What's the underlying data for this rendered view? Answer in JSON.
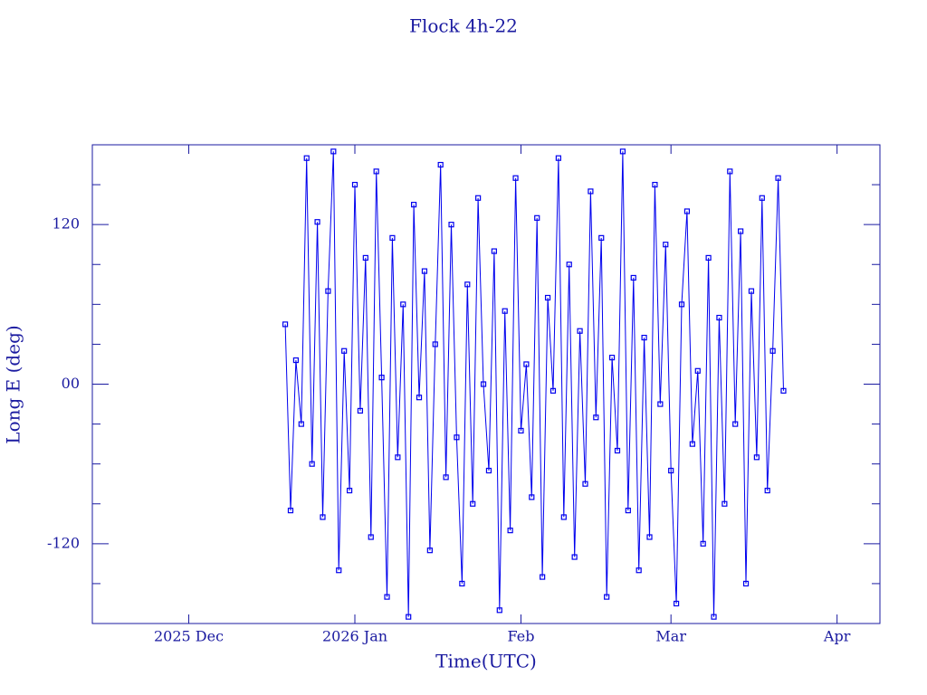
{
  "chart_data": {
    "type": "line",
    "title": "Flock 4h-22",
    "x_label": "Time(UTC)",
    "y_label": "Long E (deg)",
    "color": "#0000ee",
    "xlim": [
      -18,
      129
    ],
    "xticks": [
      {
        "value": 0,
        "label": "2025 Dec"
      },
      {
        "value": 31,
        "label": "2026 Jan"
      },
      {
        "value": 62,
        "label": "Feb"
      },
      {
        "value": 90,
        "label": "Mar"
      },
      {
        "value": 121,
        "label": "Apr"
      }
    ],
    "ylim": [
      -180,
      180
    ],
    "yticks": [
      {
        "value": -120,
        "label": "-120"
      },
      {
        "value": 0,
        "label": "00"
      },
      120
    ],
    "y_minor_ticks": [
      -150,
      -90,
      -60,
      -30,
      30,
      60,
      90,
      150
    ],
    "series": [
      {
        "x": [
          18,
          19,
          20,
          21,
          22,
          23,
          24,
          25,
          26,
          27,
          28,
          29,
          30,
          31,
          32,
          33,
          34,
          35,
          36,
          37,
          38,
          39,
          40,
          41,
          42,
          43,
          44,
          45,
          46,
          47,
          48,
          49,
          50,
          51,
          52,
          53,
          54,
          55,
          56,
          57,
          58,
          59,
          60,
          61,
          62,
          63,
          64,
          65,
          66,
          67,
          68,
          69,
          70,
          71,
          72,
          73,
          74,
          75,
          76,
          77,
          78,
          79,
          80,
          81,
          82,
          83,
          84,
          85,
          86,
          87,
          88,
          89,
          90,
          91,
          92,
          93,
          94,
          95,
          96,
          97,
          98,
          99,
          100,
          101,
          102,
          103,
          104,
          105,
          106,
          107,
          108,
          109,
          110,
          111
        ],
        "values": [
          45,
          -95,
          18,
          -30,
          170,
          -60,
          122,
          -100,
          70,
          175,
          -140,
          25,
          -80,
          150,
          -20,
          95,
          -115,
          160,
          5,
          -160,
          110,
          -55,
          60,
          -175,
          135,
          -10,
          85,
          -125,
          30,
          165,
          -70,
          120,
          -40,
          -150,
          75,
          -90,
          140,
          0,
          -65,
          100,
          -170,
          55,
          -110,
          155,
          -35,
          15,
          -85,
          125,
          -145,
          65,
          -5,
          170,
          -100,
          90,
          -130,
          40,
          -75,
          145,
          -25,
          110,
          -160,
          20,
          -50,
          175,
          -95,
          80,
          -140,
          35,
          -115,
          150,
          -15,
          105,
          -65,
          -165,
          60,
          130,
          -45,
          10,
          -120,
          95,
          -175,
          50,
          -90,
          160,
          -30,
          115,
          -150,
          70,
          -55,
          140,
          -80,
          25,
          155,
          -5
        ]
      }
    ]
  }
}
